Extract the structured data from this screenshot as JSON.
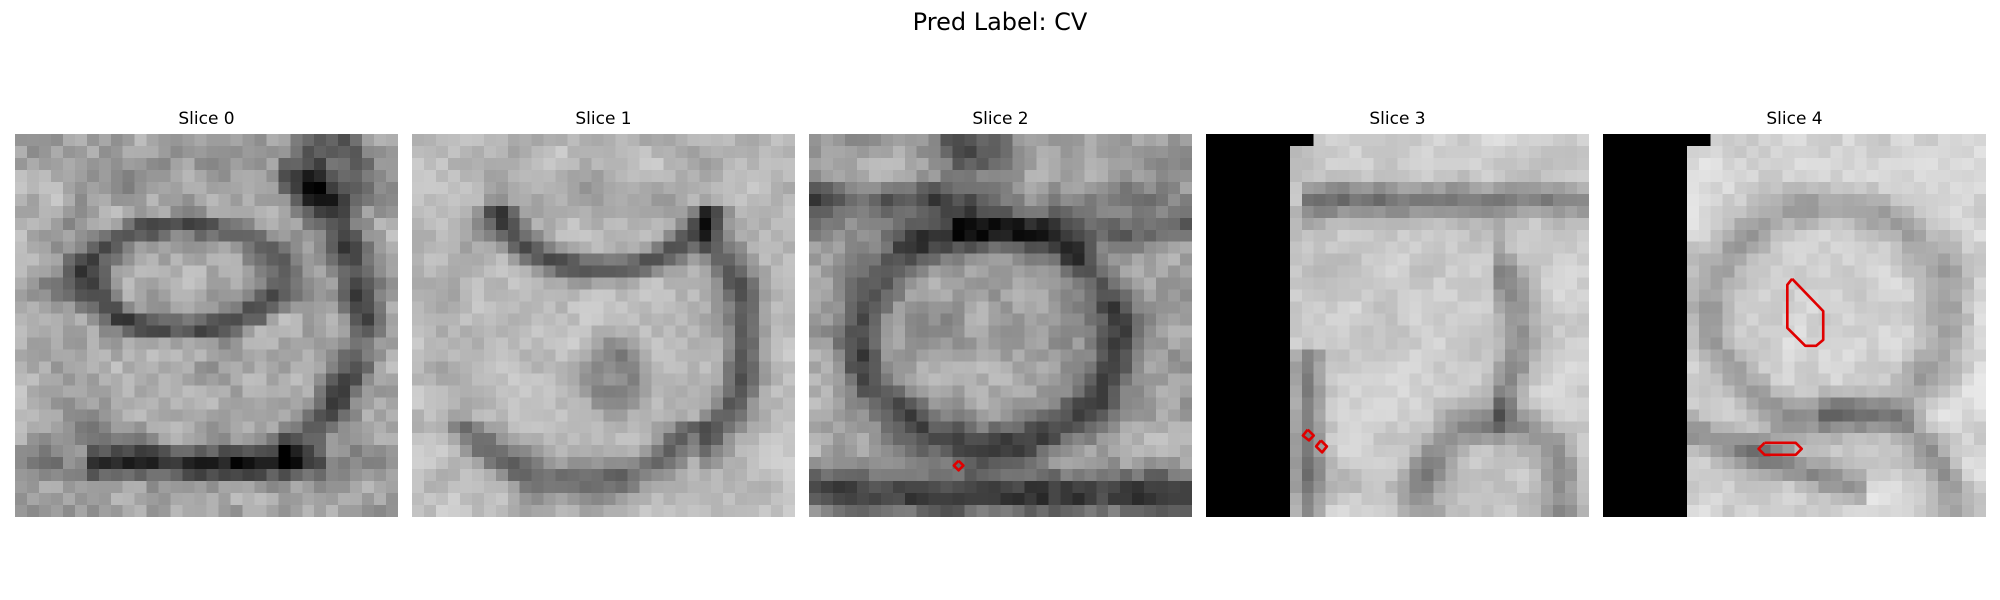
{
  "figure": {
    "title": "Pred Label: CV"
  },
  "panels": [
    {
      "title": "Slice 0"
    },
    {
      "title": "Slice 1"
    },
    {
      "title": "Slice 2"
    },
    {
      "title": "Slice 3"
    },
    {
      "title": "Slice 4"
    }
  ],
  "colors": {
    "background": "#ffffff",
    "contour": "#e00000",
    "mask": "#000000"
  }
}
